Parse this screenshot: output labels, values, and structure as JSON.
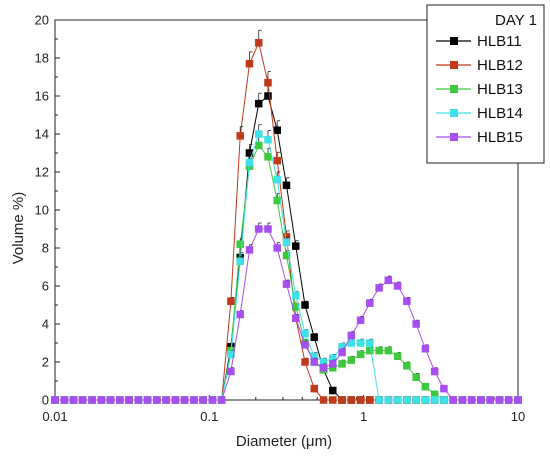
{
  "chart_data": {
    "type": "line",
    "xlabel": "Diameter (μm)",
    "ylabel": "Volume %)",
    "x_scale": "log",
    "xlim": [
      0.01,
      10
    ],
    "ylim": [
      0,
      20
    ],
    "x_ticks": [
      0.01,
      0.1,
      1,
      10
    ],
    "x_tick_labels": [
      "0.01",
      "0.1",
      "1",
      "10"
    ],
    "y_ticks": [
      0,
      2,
      4,
      6,
      8,
      10,
      12,
      14,
      16,
      18,
      20
    ],
    "y_tick_labels": [
      "0",
      "2",
      "4",
      "6",
      "8",
      "10",
      "12",
      "14",
      "16",
      "18",
      "20"
    ],
    "grid": false,
    "legend_title": "DAY 1",
    "legend_position": "top-right",
    "x": [
      0.01,
      0.0115,
      0.0132,
      0.0151,
      0.0174,
      0.02,
      0.0229,
      0.0263,
      0.0302,
      0.0347,
      0.0398,
      0.0457,
      0.0525,
      0.0603,
      0.0692,
      0.0794,
      0.0912,
      0.1047,
      0.1202,
      0.138,
      0.1585,
      0.182,
      0.2089,
      0.2399,
      0.2754,
      0.3162,
      0.3631,
      0.4169,
      0.4786,
      0.5495,
      0.631,
      0.7244,
      0.8318,
      0.955,
      1.0965,
      1.2589,
      1.4454,
      1.6596,
      1.9055,
      2.1878,
      2.5119,
      2.884,
      3.3113,
      3.8019,
      4.3652,
      5.0119,
      5.7544,
      6.6069,
      7.5858,
      8.7096,
      10.0
    ],
    "series": [
      {
        "name": "HLB11",
        "color": "#000000",
        "values": [
          0,
          0,
          0,
          0,
          0,
          0,
          0,
          0,
          0,
          0,
          0,
          0,
          0,
          0,
          0,
          0,
          0,
          0,
          0,
          2.8,
          7.5,
          13.0,
          15.6,
          16.0,
          14.2,
          11.3,
          8.1,
          5.0,
          3.3,
          1.6,
          0.5,
          0,
          0,
          0,
          0,
          0,
          0,
          0,
          0,
          0,
          0,
          0,
          0,
          0,
          0,
          0,
          0,
          0,
          0,
          0,
          0
        ]
      },
      {
        "name": "HLB12",
        "color": "#c0391b",
        "values": [
          0,
          0,
          0,
          0,
          0,
          0,
          0,
          0,
          0,
          0,
          0,
          0,
          0,
          0,
          0,
          0,
          0,
          0,
          0,
          5.2,
          13.9,
          17.7,
          18.8,
          16.7,
          12.6,
          8.6,
          4.3,
          2.0,
          0.6,
          0,
          0,
          0,
          0,
          0,
          0,
          0,
          0,
          0,
          0,
          0,
          0,
          0,
          0,
          0,
          0,
          0,
          0,
          0,
          0,
          0,
          0
        ]
      },
      {
        "name": "HLB13",
        "color": "#3ec83e",
        "values": [
          0,
          0,
          0,
          0,
          0,
          0,
          0,
          0,
          0,
          0,
          0,
          0,
          0,
          0,
          0,
          0,
          0,
          0,
          0,
          2.6,
          8.2,
          12.3,
          13.4,
          12.8,
          10.5,
          7.6,
          4.9,
          3.0,
          2.0,
          1.6,
          1.7,
          1.9,
          2.1,
          2.4,
          2.6,
          2.6,
          2.6,
          2.3,
          1.8,
          1.2,
          0.7,
          0.3,
          0,
          0,
          0,
          0,
          0,
          0,
          0,
          0,
          0
        ]
      },
      {
        "name": "HLB14",
        "color": "#40e0e8",
        "values": [
          0,
          0,
          0,
          0,
          0,
          0,
          0,
          0,
          0,
          0,
          0,
          0,
          0,
          0,
          0,
          0,
          0,
          0,
          0,
          2.4,
          7.3,
          12.5,
          14.0,
          13.7,
          11.6,
          8.3,
          5.5,
          3.5,
          2.3,
          2.0,
          2.2,
          2.8,
          3.0,
          3.0,
          3.0,
          0,
          0,
          0,
          0,
          0,
          0,
          0,
          0,
          0,
          0,
          0,
          0,
          0,
          0,
          0,
          0
        ]
      },
      {
        "name": "HLB15",
        "color": "#a64ef0",
        "values": [
          0,
          0,
          0,
          0,
          0,
          0,
          0,
          0,
          0,
          0,
          0,
          0,
          0,
          0,
          0,
          0,
          0,
          0,
          0,
          1.5,
          4.5,
          7.9,
          9.0,
          9.0,
          8.0,
          6.1,
          4.3,
          2.9,
          2.0,
          1.7,
          1.9,
          2.5,
          3.4,
          4.2,
          5.1,
          5.9,
          6.3,
          6.0,
          5.2,
          4.0,
          2.7,
          1.5,
          0.6,
          0,
          0,
          0,
          0,
          0,
          0,
          0,
          0
        ]
      }
    ]
  }
}
